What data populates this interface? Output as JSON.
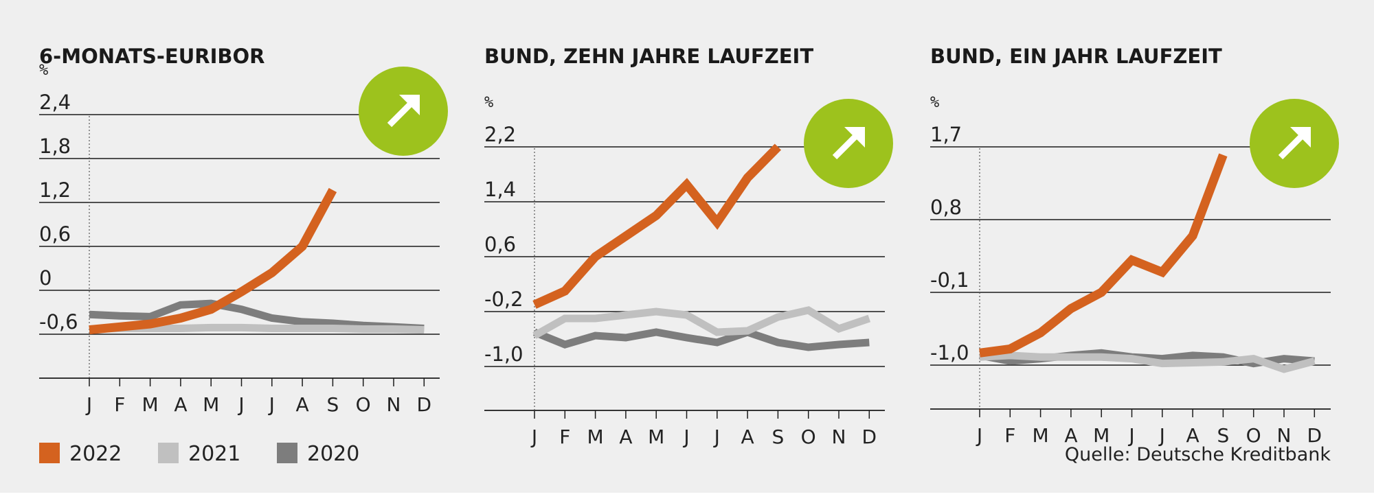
{
  "chart_data": [
    {
      "type": "line",
      "title": "6-MONATS-EURIBOR",
      "unit": "%",
      "yticks": [
        "2,4",
        "1,8",
        "1,2",
        "0,6",
        "0",
        "-0,6"
      ],
      "ylim": [
        -0.6,
        2.4
      ],
      "categories": [
        "J",
        "F",
        "M",
        "A",
        "M",
        "J",
        "J",
        "A",
        "S",
        "O",
        "N",
        "D"
      ],
      "series": [
        {
          "name": "2022",
          "color": "#d4621f",
          "values": [
            -0.54,
            -0.5,
            -0.46,
            -0.38,
            -0.26,
            -0.02,
            0.24,
            0.6,
            1.37,
            null,
            null,
            null
          ]
        },
        {
          "name": "2021",
          "color": "#c0c0c0",
          "values": [
            -0.53,
            -0.52,
            -0.52,
            -0.52,
            -0.51,
            -0.51,
            -0.52,
            -0.52,
            -0.52,
            -0.53,
            -0.53,
            -0.54
          ]
        },
        {
          "name": "2020",
          "color": "#7d7d7d",
          "values": [
            -0.33,
            -0.35,
            -0.36,
            -0.2,
            -0.18,
            -0.26,
            -0.38,
            -0.43,
            -0.45,
            -0.48,
            -0.5,
            -0.52
          ]
        }
      ],
      "trend_icon": "arrow-up-right-icon"
    },
    {
      "type": "line",
      "title": "BUND, ZEHN JAHRE LAUFZEIT",
      "unit": "%",
      "yticks": [
        "2,2",
        "1,4",
        "0,6",
        "-0,2",
        "-1,0"
      ],
      "ylim": [
        -1.0,
        2.2
      ],
      "categories": [
        "J",
        "F",
        "M",
        "A",
        "M",
        "J",
        "J",
        "A",
        "S",
        "O",
        "N",
        "D"
      ],
      "series": [
        {
          "name": "2022",
          "color": "#d4621f",
          "values": [
            -0.1,
            0.1,
            0.6,
            0.9,
            1.2,
            1.65,
            1.1,
            1.75,
            2.2,
            null,
            null,
            null
          ]
        },
        {
          "name": "2021",
          "color": "#c0c0c0",
          "values": [
            -0.55,
            -0.3,
            -0.3,
            -0.25,
            -0.2,
            -0.25,
            -0.5,
            -0.48,
            -0.28,
            -0.18,
            -0.45,
            -0.3
          ]
        },
        {
          "name": "2020",
          "color": "#7d7d7d",
          "values": [
            -0.5,
            -0.68,
            -0.55,
            -0.58,
            -0.5,
            -0.58,
            -0.65,
            -0.5,
            -0.65,
            -0.72,
            -0.68,
            -0.65
          ]
        }
      ],
      "trend_icon": "arrow-up-right-icon"
    },
    {
      "type": "line",
      "title": "BUND, EIN JAHR LAUFZEIT",
      "unit": "%",
      "yticks": [
        "1,7",
        "0,8",
        "-0,1",
        "-1,0"
      ],
      "ylim": [
        -1.0,
        1.7
      ],
      "categories": [
        "J",
        "F",
        "M",
        "A",
        "M",
        "J",
        "J",
        "A",
        "S",
        "O",
        "N",
        "D"
      ],
      "series": [
        {
          "name": "2022",
          "color": "#d4621f",
          "values": [
            -0.85,
            -0.8,
            -0.6,
            -0.3,
            -0.1,
            0.3,
            0.15,
            0.6,
            1.6,
            null,
            null,
            null
          ]
        },
        {
          "name": "2021",
          "color": "#c0c0c0",
          "values": [
            -0.9,
            -0.88,
            -0.9,
            -0.9,
            -0.9,
            -0.92,
            -0.98,
            -0.97,
            -0.96,
            -0.92,
            -1.05,
            -0.95
          ]
        },
        {
          "name": "2020",
          "color": "#7d7d7d",
          "values": [
            -0.88,
            -0.95,
            -0.92,
            -0.88,
            -0.85,
            -0.9,
            -0.92,
            -0.88,
            -0.9,
            -0.98,
            -0.92,
            -0.95
          ]
        }
      ],
      "trend_icon": "arrow-up-right-icon"
    }
  ],
  "legend": [
    {
      "label": "2022",
      "color": "#d4621f"
    },
    {
      "label": "2021",
      "color": "#c0c0c0"
    },
    {
      "label": "2020",
      "color": "#7d7d7d"
    }
  ],
  "source": "Quelle: Deutsche Kreditbank",
  "accent_color": "#9dc21d"
}
